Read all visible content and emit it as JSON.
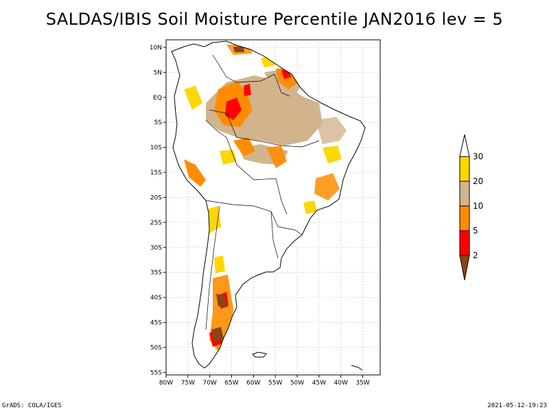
{
  "title": "SALDAS/IBIS Soil Moisture Percentile JAN2016 lev = 5",
  "footer": {
    "left": "GrADS: COLA/IGES",
    "right": "2021-05-12-19:23"
  },
  "map": {
    "lon_range": [
      -80,
      -31
    ],
    "lat_range": [
      -55.5,
      11.5
    ],
    "lon_ticks": [
      {
        "value": -80,
        "label": "80W"
      },
      {
        "value": -75,
        "label": "75W"
      },
      {
        "value": -70,
        "label": "70W"
      },
      {
        "value": -65,
        "label": "65W"
      },
      {
        "value": -60,
        "label": "60W"
      },
      {
        "value": -55,
        "label": "55W"
      },
      {
        "value": -50,
        "label": "50W"
      },
      {
        "value": -45,
        "label": "45W"
      },
      {
        "value": -40,
        "label": "40W"
      },
      {
        "value": -35,
        "label": "35W"
      }
    ],
    "lat_ticks": [
      {
        "value": 10,
        "label": "10N"
      },
      {
        "value": 5,
        "label": "5N"
      },
      {
        "value": 0,
        "label": "EQ"
      },
      {
        "value": -5,
        "label": "5S"
      },
      {
        "value": -10,
        "label": "10S"
      },
      {
        "value": -15,
        "label": "15S"
      },
      {
        "value": -20,
        "label": "20S"
      },
      {
        "value": -25,
        "label": "25S"
      },
      {
        "value": -30,
        "label": "30S"
      },
      {
        "value": -35,
        "label": "35S"
      },
      {
        "value": -40,
        "label": "40S"
      },
      {
        "value": -45,
        "label": "45S"
      },
      {
        "value": -50,
        "label": "50S"
      },
      {
        "value": -55,
        "label": "55S"
      }
    ]
  },
  "colorbar": {
    "levels": [
      "2",
      "5",
      "10",
      "20",
      "30"
    ],
    "colors": [
      "#8b4513",
      "#ff0000",
      "#ff8c00",
      "#d2b48c",
      "#ffd700",
      "#ffffff"
    ]
  },
  "colors": {
    "brown": "#8b4513",
    "red": "#ff0000",
    "orange": "#ff8c00",
    "tan": "#d2b48c",
    "gold": "#ffd700"
  }
}
